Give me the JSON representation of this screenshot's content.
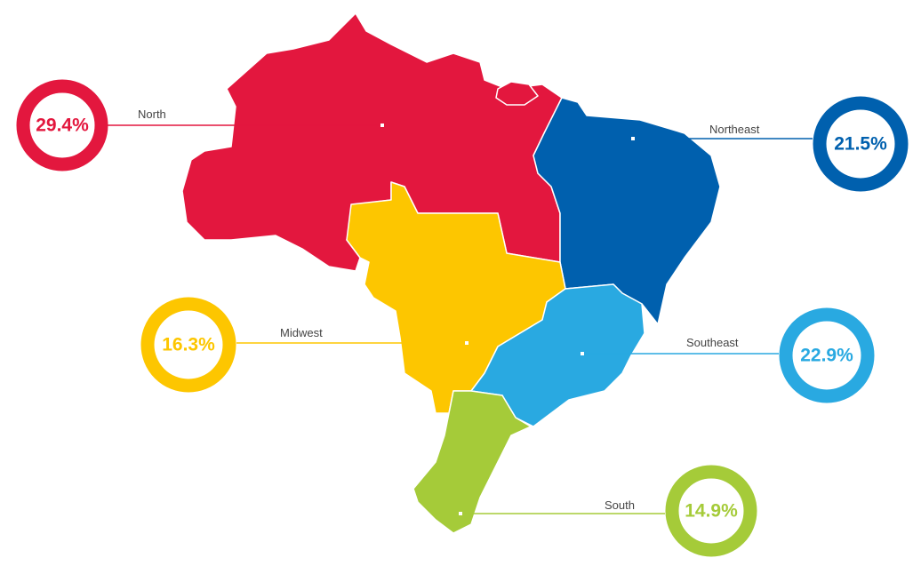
{
  "regions": [
    {
      "name": "North",
      "share": "29.4%",
      "color": "#e3173e"
    },
    {
      "name": "Northeast",
      "share": "21.5%",
      "color": "#0060ae"
    },
    {
      "name": "Midwest",
      "share": "16.3%",
      "color": "#fdc600"
    },
    {
      "name": "Southeast",
      "share": "22.9%",
      "color": "#29a9e1"
    },
    {
      "name": "South",
      "share": "14.9%",
      "color": "#a5cb39"
    }
  ]
}
